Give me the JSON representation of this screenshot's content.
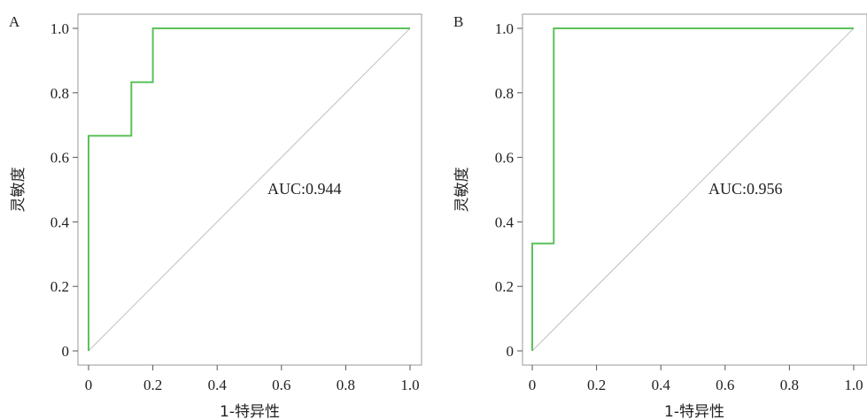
{
  "chart_data": [
    {
      "type": "line",
      "panel": "A",
      "xlabel": "1-特异性",
      "ylabel": "灵敏度",
      "xlim": [
        0,
        1
      ],
      "ylim": [
        0,
        1
      ],
      "x_ticks": [
        "0",
        "0.2",
        "0.4",
        "0.6",
        "0.8",
        "1.0"
      ],
      "y_ticks": [
        "0",
        "0.2",
        "0.4",
        "0.6",
        "0.8",
        "1.0"
      ],
      "annotation": "AUC:0.944",
      "grid": false,
      "colors": {
        "roc": "#5cc15a",
        "diagonal": "#c8c8c8"
      },
      "series": [
        {
          "x": [
            0,
            0,
            0.133,
            0.133,
            0.2,
            0.2,
            1.0
          ],
          "y": [
            0,
            0.667,
            0.667,
            0.833,
            0.833,
            1.0,
            1.0
          ]
        }
      ]
    },
    {
      "type": "line",
      "panel": "B",
      "xlabel": "1-特异性",
      "ylabel": "灵敏度",
      "xlim": [
        0,
        1
      ],
      "ylim": [
        0,
        1
      ],
      "x_ticks": [
        "0",
        "0.2",
        "0.4",
        "0.6",
        "0.8",
        "1.0"
      ],
      "y_ticks": [
        "0",
        "0.2",
        "0.4",
        "0.6",
        "0.8",
        "1.0"
      ],
      "annotation": "AUC:0.956",
      "grid": false,
      "colors": {
        "roc": "#5cc15a",
        "diagonal": "#c8c8c8"
      },
      "series": [
        {
          "x": [
            0,
            0,
            0.067,
            0.067,
            1.0
          ],
          "y": [
            0,
            0.333,
            0.333,
            1.0,
            1.0
          ]
        }
      ]
    }
  ]
}
